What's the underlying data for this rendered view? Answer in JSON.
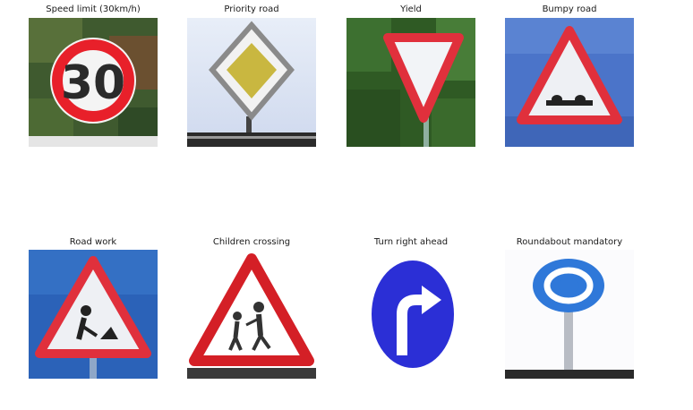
{
  "figure": {
    "panels": [
      {
        "title": "Speed limit (30km/h)",
        "sign_text": "30",
        "colors": {
          "rim": "#e8202a",
          "face": "#f4f4f4"
        }
      },
      {
        "title": "Priority road",
        "colors": {
          "border": "#8a8a8a",
          "inner": "#c9b740"
        }
      },
      {
        "title": "Yield",
        "colors": {
          "rim": "#e0303c",
          "face": "#f2f4f7"
        }
      },
      {
        "title": "Bumpy road",
        "colors": {
          "rim": "#e0303c",
          "bg": "#4b74c9"
        }
      },
      {
        "title": "Road work",
        "colors": {
          "rim": "#e0303c",
          "bg": "#2b62b8"
        }
      },
      {
        "title": "Children crossing",
        "colors": {
          "rim": "#d41f26"
        }
      },
      {
        "title": "Turn right ahead",
        "colors": {
          "disc": "#2b2fd6"
        }
      },
      {
        "title": "Roundabout mandatory",
        "colors": {
          "disc": "#2f78d9"
        }
      }
    ]
  }
}
